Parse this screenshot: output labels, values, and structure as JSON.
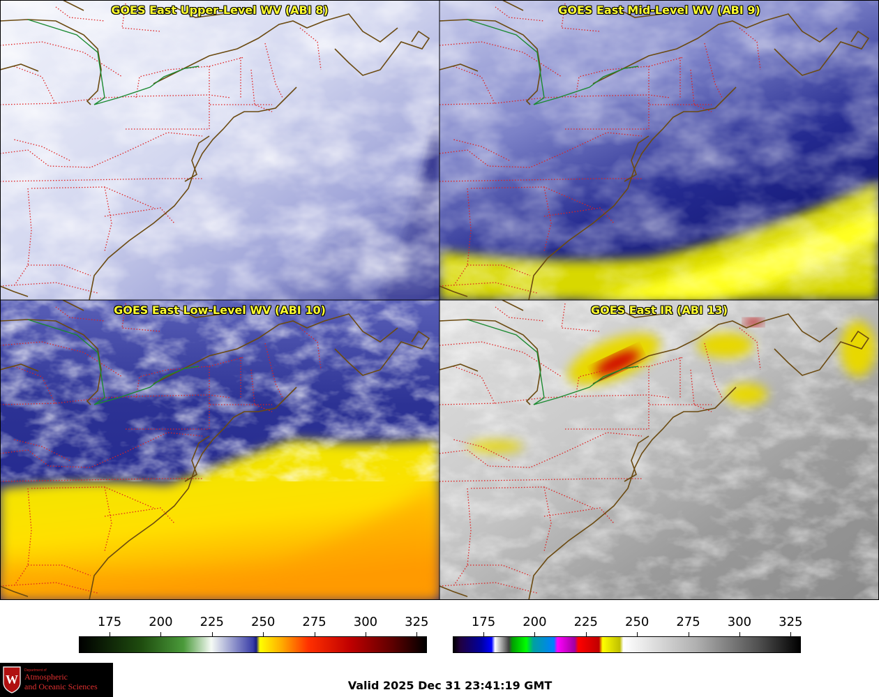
{
  "panels": [
    {
      "id": "upper",
      "title": "GOES East Upper-Level WV (ABI 8)"
    },
    {
      "id": "mid",
      "title": "GOES East Mid-Level WV (ABI 9)"
    },
    {
      "id": "low",
      "title": "GOES East Low-Level WV (ABI 10)"
    },
    {
      "id": "ir",
      "title": "GOES East IR (ABI 13)"
    }
  ],
  "colorbars": {
    "wv": {
      "ticks": [
        "175",
        "200",
        "225",
        "250",
        "275",
        "300",
        "325"
      ],
      "stops": [
        "#000000",
        "#1f4d0f",
        "#3d8c2e",
        "#f5faf5",
        "#3a3ea8",
        "#ffff00",
        "#ff6000",
        "#e00000",
        "#000000"
      ]
    },
    "ir": {
      "ticks": [
        "175",
        "200",
        "225",
        "250",
        "275",
        "300",
        "325"
      ]
    }
  },
  "valid_time": "Valid 2025 Dec 31 23:41:19 GMT",
  "logo": {
    "dept": "Department of",
    "line1": "Atmospheric",
    "line2": "and Oceanic Sciences"
  },
  "colors": {
    "title": "#ffff30",
    "state_borders": "#e02020",
    "coastline": "#6b4a10",
    "intl_border": "#1a8a30"
  }
}
